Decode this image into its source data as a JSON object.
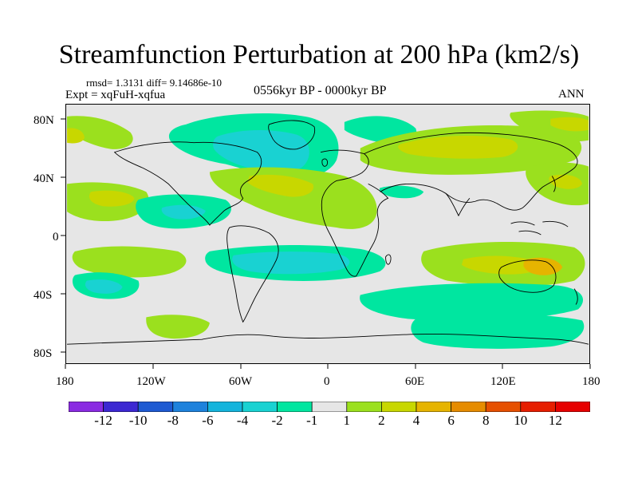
{
  "title": "Streamfunction Perturbation at 200 hPa (km2/s)",
  "stats": "rmsd= 1.3131  diff= 9.14686e-10",
  "experiment": "Expt = xqFuH-xqfua",
  "period": "0556kyr BP - 0000kyr BP",
  "season": "ANN",
  "y_ticks": [
    "80N",
    "40N",
    "0",
    "40S",
    "80S"
  ],
  "x_ticks": [
    "180",
    "120W",
    "60W",
    "0",
    "60E",
    "120E",
    "180"
  ],
  "colorbar": {
    "labels": [
      "-12",
      "-10",
      "-8",
      "-6",
      "-4",
      "-2",
      "-1",
      "1",
      "2",
      "4",
      "6",
      "8",
      "10",
      "12"
    ],
    "colors": [
      "#8a2be2",
      "#3c28d2",
      "#1e5ad2",
      "#1e82dc",
      "#14b4dc",
      "#19d2d2",
      "#00e6a0",
      "#e6e6e6",
      "#9be01e",
      "#c8d700",
      "#e6b400",
      "#e68c00",
      "#e65000",
      "#e61e00",
      "#e60000"
    ]
  },
  "chart_data": {
    "type": "heatmap",
    "title": "Streamfunction Perturbation at 200 hPa (km2/s)",
    "variable": "streamfunction perturbation",
    "units": "km2/s",
    "level": "200 hPa",
    "x_range": [
      -180,
      180
    ],
    "y_range": [
      -90,
      90
    ],
    "contour_levels": [
      -12,
      -10,
      -8,
      -6,
      -4,
      -2,
      -1,
      1,
      2,
      4,
      6,
      8,
      10,
      12
    ],
    "features": [
      {
        "name": "North Atlantic / North America negative",
        "approx_value": -4
      },
      {
        "name": "Eurasia positive",
        "approx_value": 2
      },
      {
        "name": "Subtropical Atlantic positive",
        "approx_value": 2
      },
      {
        "name": "Southern mid-latitudes negative",
        "approx_value": -2
      },
      {
        "name": "Southern Indian / Australia positive",
        "approx_value": 2
      }
    ]
  }
}
